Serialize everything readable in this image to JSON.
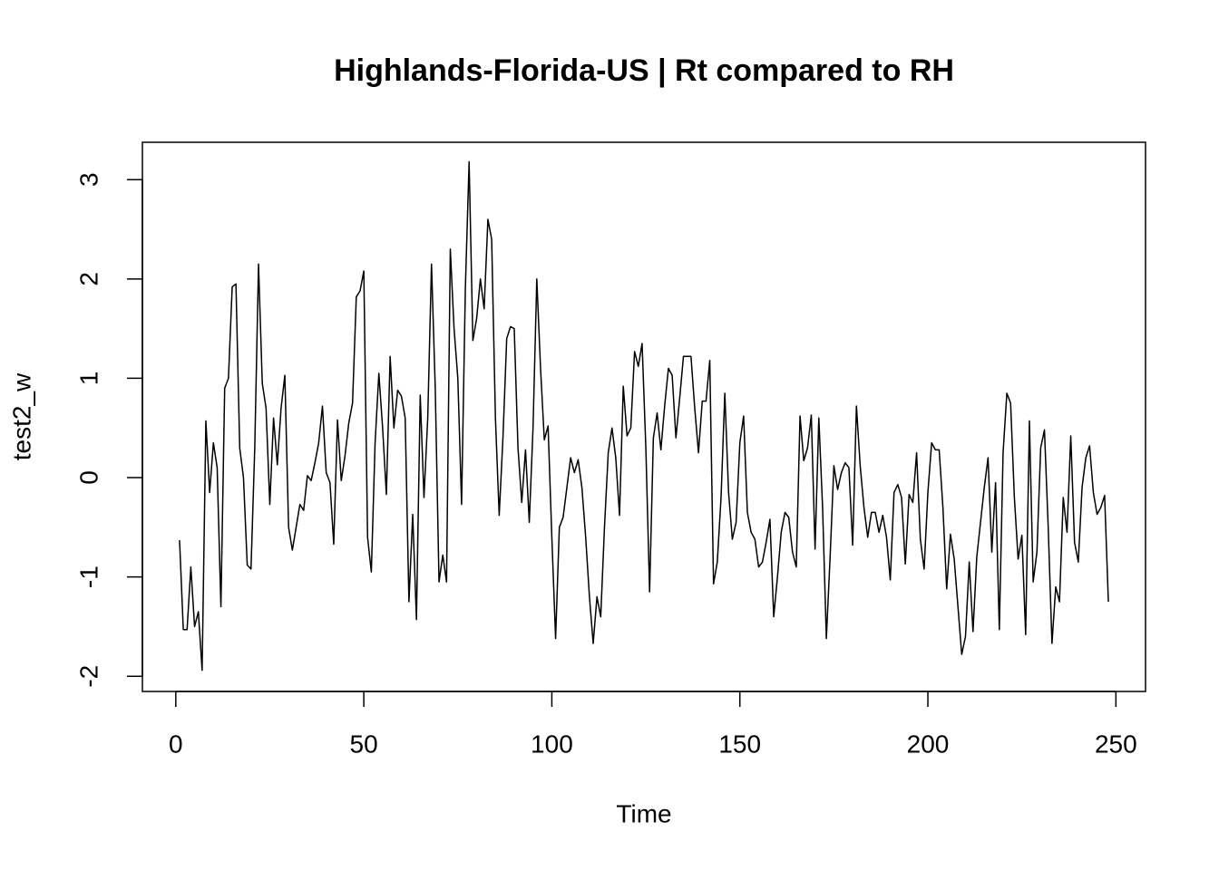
{
  "chart_data": {
    "type": "line",
    "title": "Highlands-Florida-US | Rt compared to RH",
    "x_label": "Time",
    "y_label": "test2_w",
    "xlim": [
      -8.88,
      257.88
    ],
    "ylim": [
      -2.153,
      3.376
    ],
    "xticks": [
      0,
      50,
      100,
      150,
      200,
      250
    ],
    "yticks": [
      -2,
      -1,
      0,
      1,
      2,
      3
    ],
    "series": [
      {
        "color": "#000000",
        "x": [
          1,
          2,
          3,
          4,
          5,
          6,
          7,
          8,
          9,
          10,
          11,
          12,
          13,
          14,
          15,
          16,
          17,
          18,
          19,
          20,
          21,
          22,
          23,
          24,
          25,
          26,
          27,
          28,
          29,
          30,
          31,
          32,
          33,
          34,
          35,
          36,
          37,
          38,
          39,
          40,
          41,
          42,
          43,
          44,
          45,
          46,
          47,
          48,
          49,
          50,
          51,
          52,
          53,
          54,
          55,
          56,
          57,
          58,
          59,
          60,
          61,
          62,
          63,
          64,
          65,
          66,
          67,
          68,
          69,
          70,
          71,
          72,
          73,
          74,
          75,
          76,
          77,
          78,
          79,
          80,
          81,
          82,
          83,
          84,
          85,
          86,
          87,
          88,
          89,
          90,
          91,
          92,
          93,
          94,
          95,
          96,
          97,
          98,
          99,
          100,
          101,
          102,
          103,
          104,
          105,
          106,
          107,
          108,
          109,
          110,
          111,
          112,
          113,
          114,
          115,
          116,
          117,
          118,
          119,
          120,
          121,
          122,
          123,
          124,
          125,
          126,
          127,
          128,
          129,
          130,
          131,
          132,
          133,
          134,
          135,
          136,
          137,
          138,
          139,
          140,
          141,
          142,
          143,
          144,
          145,
          146,
          147,
          148,
          149,
          150,
          151,
          152,
          153,
          154,
          155,
          156,
          157,
          158,
          159,
          160,
          161,
          162,
          163,
          164,
          165,
          166,
          167,
          168,
          169,
          170,
          171,
          172,
          173,
          174,
          175,
          176,
          177,
          178,
          179,
          180,
          181,
          182,
          183,
          184,
          185,
          186,
          187,
          188,
          189,
          190,
          191,
          192,
          193,
          194,
          195,
          196,
          197,
          198,
          199,
          200,
          201,
          202,
          203,
          204,
          205,
          206,
          207,
          208,
          209,
          210,
          211,
          212,
          213,
          214,
          215,
          216,
          217,
          218,
          219,
          220,
          221,
          222,
          223,
          224,
          225,
          226,
          227,
          228,
          229,
          230,
          231,
          232,
          233,
          234,
          235,
          236,
          237,
          238,
          239,
          240,
          241,
          242,
          243,
          244,
          245,
          246,
          247,
          248
        ],
        "values": [
          -0.63,
          -1.53,
          -1.53,
          -0.9,
          -1.5,
          -1.35,
          -1.94,
          0.57,
          -0.15,
          0.35,
          0.1,
          -1.3,
          0.9,
          1.0,
          1.92,
          1.95,
          0.3,
          0.0,
          -0.88,
          -0.92,
          0.3,
          2.15,
          0.95,
          0.7,
          -0.27,
          0.6,
          0.13,
          0.7,
          1.03,
          -0.5,
          -0.73,
          -0.5,
          -0.27,
          -0.33,
          0.02,
          -0.03,
          0.15,
          0.35,
          0.72,
          0.05,
          -0.05,
          -0.67,
          0.58,
          -0.03,
          0.22,
          0.55,
          0.75,
          1.82,
          1.88,
          2.08,
          -0.6,
          -0.95,
          0.35,
          1.05,
          0.5,
          -0.17,
          1.22,
          0.5,
          0.88,
          0.82,
          0.6,
          -1.25,
          -0.37,
          -1.43,
          0.83,
          -0.2,
          0.6,
          2.15,
          0.9,
          -1.05,
          -0.78,
          -1.05,
          2.3,
          1.5,
          1.0,
          -0.27,
          1.9,
          3.18,
          1.38,
          1.6,
          2.0,
          1.7,
          2.6,
          2.4,
          0.6,
          -0.38,
          0.4,
          1.4,
          1.52,
          1.5,
          0.3,
          -0.25,
          0.28,
          -0.45,
          0.5,
          2.0,
          1.1,
          0.38,
          0.52,
          -0.6,
          -1.62,
          -0.5,
          -0.4,
          -0.1,
          0.2,
          0.05,
          0.18,
          -0.1,
          -0.6,
          -1.2,
          -1.67,
          -1.2,
          -1.4,
          -0.5,
          0.25,
          0.5,
          0.2,
          -0.38,
          0.92,
          0.42,
          0.5,
          1.27,
          1.12,
          1.35,
          0.3,
          -1.15,
          0.4,
          0.65,
          0.28,
          0.72,
          1.1,
          1.03,
          0.4,
          0.8,
          1.22,
          1.22,
          1.22,
          0.7,
          0.25,
          0.77,
          0.77,
          1.18,
          -1.07,
          -0.85,
          -0.2,
          0.85,
          -0.15,
          -0.62,
          -0.45,
          0.35,
          0.62,
          -0.35,
          -0.55,
          -0.62,
          -0.9,
          -0.85,
          -0.65,
          -0.42,
          -1.4,
          -1.0,
          -0.55,
          -0.35,
          -0.4,
          -0.75,
          -0.9,
          0.62,
          0.17,
          0.3,
          0.63,
          -0.72,
          0.6,
          -0.3,
          -1.62,
          -0.8,
          0.12,
          -0.12,
          0.05,
          0.15,
          0.1,
          -0.68,
          0.72,
          0.12,
          -0.3,
          -0.6,
          -0.35,
          -0.35,
          -0.55,
          -0.38,
          -0.6,
          -1.03,
          -0.15,
          -0.07,
          -0.2,
          -0.87,
          -0.17,
          -0.25,
          0.25,
          -0.62,
          -0.92,
          -0.15,
          0.35,
          0.28,
          0.28,
          -0.3,
          -1.12,
          -0.57,
          -0.82,
          -1.3,
          -1.78,
          -1.6,
          -0.85,
          -1.55,
          -0.8,
          -0.45,
          -0.1,
          0.2,
          -0.75,
          -0.05,
          -1.53,
          0.25,
          0.85,
          0.75,
          -0.2,
          -0.82,
          -0.58,
          -1.58,
          0.57,
          -1.05,
          -0.75,
          0.3,
          0.48,
          -0.5,
          -1.67,
          -1.1,
          -1.25,
          -0.2,
          -0.55,
          0.42,
          -0.65,
          -0.85,
          -0.1,
          0.2,
          0.32,
          -0.15,
          -0.37,
          -0.3,
          -0.18,
          -1.25
        ]
      }
    ]
  }
}
